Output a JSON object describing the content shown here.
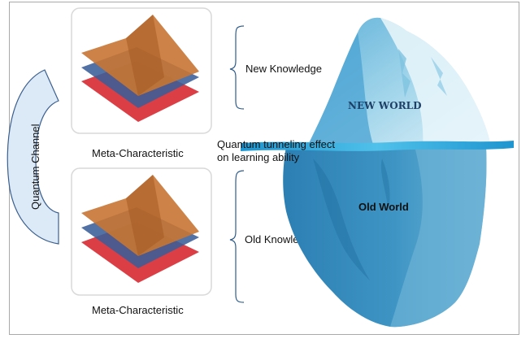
{
  "labels": {
    "quantum_channel": "Quantum Channel",
    "meta_top": "Meta-Characteristic",
    "meta_bottom": "Meta-Characteristic",
    "new_knowledge": "New Knowledge",
    "old_knowledge": "Old Knowledge",
    "tunneling_line1": "Quantum tunneling effect",
    "tunneling_line2": "on learning ability",
    "new_world": "NEW WORLD",
    "old_world": "Old World"
  },
  "colors": {
    "orange_surface": "#c87533",
    "blue_surface": "#3a6aa0",
    "red_surface": "#d9343a",
    "ice_light": "#c9e6f3",
    "ice_mid": "#7fc3e0",
    "ice_deep": "#2f86b8",
    "water_line": "#2aa3d6",
    "channel_fill": "#dce9f7",
    "bracket": "#2e5c8a"
  }
}
